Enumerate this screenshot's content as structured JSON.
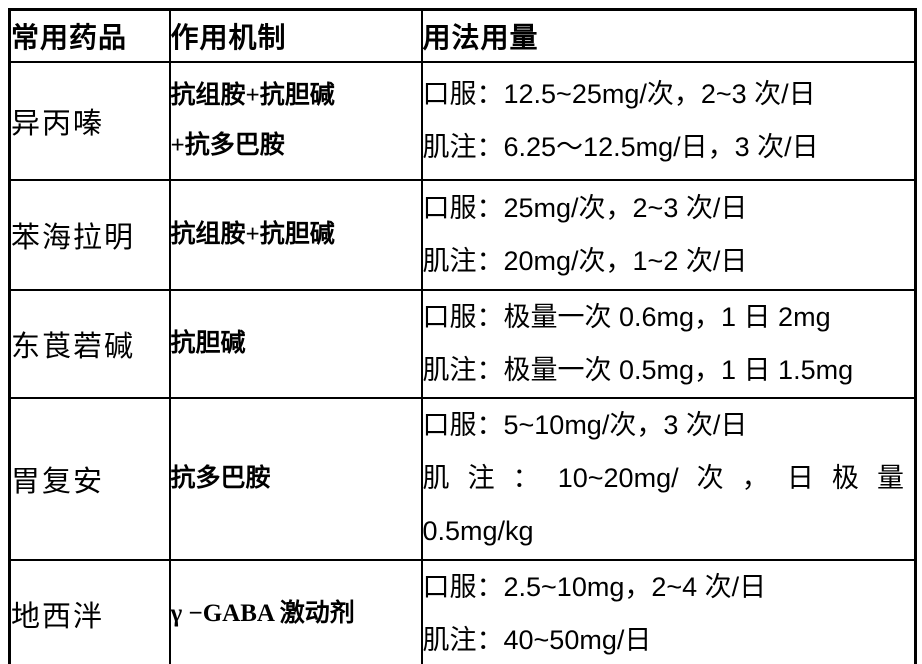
{
  "table": {
    "headers": [
      "常用药品",
      "作用机制",
      "用法用量"
    ],
    "rows": [
      {
        "drug": "异丙嗪",
        "mechanism": [
          "抗组胺+抗胆碱",
          "+抗多巴胺"
        ],
        "dosage": [
          "口服：12.5~25mg/次，2~3 次/日",
          "肌注：6.25～12.5mg/日，3 次/日"
        ]
      },
      {
        "drug": "苯海拉明",
        "mechanism": [
          "抗组胺+抗胆碱"
        ],
        "dosage": [
          "口服：25mg/次，2~3 次/日",
          "肌注：20mg/次，1~2 次/日"
        ]
      },
      {
        "drug": "东莨菪碱",
        "mechanism": [
          "抗胆碱"
        ],
        "dosage": [
          "口服：极量一次 0.6mg，1 日 2mg",
          "肌注：极量一次 0.5mg，1 日 1.5mg"
        ]
      },
      {
        "drug": "胃复安",
        "mechanism": [
          "抗多巴胺"
        ],
        "dosage": [
          "口服：5~10mg/次，3 次/日",
          "肌注：10~20mg/次，日极量",
          "0.5mg/kg"
        ]
      },
      {
        "drug": "地西泮",
        "mechanism": [
          "γ −GABA 激动剂"
        ],
        "dosage": [
          "口服：2.5~10mg，2~4 次/日",
          "肌注：40~50mg/日"
        ]
      }
    ],
    "colors": {
      "border": "#000000",
      "text": "#000000",
      "background": "#ffffff"
    }
  }
}
